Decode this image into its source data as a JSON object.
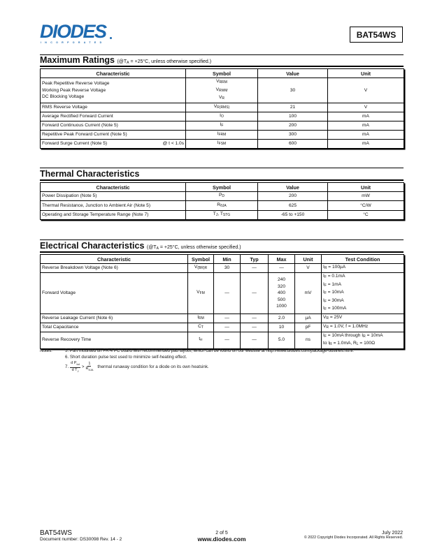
{
  "header": {
    "logo_text": "DIODES",
    "logo_subtext": "INCORPORATED",
    "brand_color": "#1e6ab0",
    "part_number": "BAT54WS"
  },
  "max_ratings": {
    "title": "Maximum Ratings",
    "condition": {
      "pre": "(@T",
      "sub": "A",
      "post": " = +25°C, unless otherwise specified.)"
    },
    "columns": [
      "Characteristic",
      "Symbol",
      "Value",
      "Unit"
    ],
    "rows": [
      [
        [
          "Peak Repetitive Reverse Voltage",
          "Working Peak Reverse Voltage",
          "DC Blocking Voltage"
        ],
        [
          {
            "v": "V",
            "s": "RRM"
          },
          {
            "v": "V",
            "s": "RWM"
          },
          {
            "v": "V",
            "s": "R"
          }
        ],
        "30",
        "V"
      ],
      [
        "RMS Reverse Voltage",
        [
          {
            "v": "V",
            "s": "R(RMS)"
          }
        ],
        "21",
        "V"
      ],
      [
        "Average Rectified Forward Current",
        [
          {
            "v": "I",
            "s": "O"
          }
        ],
        "100",
        "mA"
      ],
      [
        "Forward Continuous Current (Note 5)",
        [
          {
            "v": "I",
            "s": "F"
          }
        ],
        "200",
        "mA"
      ],
      [
        "Repetitive Peak Forward Current (Note 5)",
        [
          {
            "v": "I",
            "s": "FRM"
          }
        ],
        "300",
        "mA"
      ],
      [
        {
          "text": "Forward Surge Current (Note 5)",
          "right": "@ t < 1.0s"
        },
        [
          {
            "v": "I",
            "s": "FSM"
          }
        ],
        "600",
        "mA"
      ]
    ]
  },
  "thermal": {
    "title": "Thermal Characteristics",
    "columns": [
      "Characteristic",
      "Symbol",
      "Value",
      "Unit"
    ],
    "rows": [
      [
        "Power Dissipation (Note 5)",
        [
          {
            "v": "P",
            "s": "D"
          }
        ],
        "200",
        "mW"
      ],
      [
        "Thermal Resistance, Junction to Ambient Air (Note 5)",
        [
          {
            "v": "R",
            "s": "θJA"
          }
        ],
        "625",
        "°C/W"
      ],
      [
        "Operating and Storage Temperature Range (Note 7)",
        [
          {
            "v": "T",
            "s": "J",
            "t": ", T"
          },
          {
            "v": "",
            "s": "STG",
            "inline": true
          }
        ],
        "-65 to +150",
        "°C"
      ]
    ]
  },
  "electrical": {
    "title": "Electrical Characteristics",
    "condition": {
      "pre": "(@T",
      "sub": "A",
      "post": " = +25°C, unless otherwise specified.)"
    },
    "columns": [
      "Characteristic",
      "Symbol",
      "Min",
      "Typ",
      "Max",
      "Unit",
      "Test Condition"
    ],
    "rows": [
      [
        "Reverse Breakdown Voltage (Note 6)",
        [
          {
            "v": "V",
            "s": "(BR)R"
          }
        ],
        "30",
        "—",
        "—",
        "V",
        [
          {
            "v": "I",
            "s": "R",
            "t": " = 100µA"
          }
        ]
      ],
      [
        "Forward Voltage",
        [
          {
            "v": "V",
            "s": "FM"
          }
        ],
        "—",
        "—",
        [
          "240",
          "320",
          "400",
          "500",
          "1000"
        ],
        "mV",
        [
          {
            "v": "I",
            "s": "F",
            "t": " = 0.1mA"
          },
          {
            "v": "I",
            "s": "F",
            "t": " = 1mA"
          },
          {
            "v": "I",
            "s": "F",
            "t": " = 10mA"
          },
          {
            "v": "I",
            "s": "F",
            "t": " = 30mA"
          },
          {
            "v": "I",
            "s": "F",
            "t": " = 100mA"
          }
        ]
      ],
      [
        "Reverse Leakage Current (Note 6)",
        [
          {
            "v": "I",
            "s": "RM"
          }
        ],
        "—",
        "—",
        "2.0",
        "µA",
        [
          {
            "v": "V",
            "s": "R",
            "t": " = 25V"
          }
        ]
      ],
      [
        "Total Capacitance",
        [
          {
            "v": "C",
            "s": "T"
          }
        ],
        "—",
        "—",
        "10",
        "pF",
        [
          {
            "v": "V",
            "s": "R",
            "t": " = 1.0V, f = 1.0MHz"
          }
        ]
      ],
      [
        "Reverse Recovery Time",
        [
          {
            "v": "t",
            "s": "rr"
          }
        ],
        "—",
        "—",
        "5.0",
        "ns",
        [
          {
            "v": "I",
            "s": "F",
            "t": " = 10mA through I",
            "s2": "R",
            "t2": " = 10mA"
          },
          {
            "v": "to I",
            "s": "R",
            "t": " = 1.0mA, R",
            "s2": "L",
            "t2": " = 100Ω"
          }
        ]
      ]
    ]
  },
  "notes": {
    "label": "Notes:",
    "items": [
      "5.  Part mounted on FR-4 PC board with recommended pad layout, which can be found on our website at http://www.diodes.com/package-outlines.html.",
      "6.  Short duration pulse test used to minimize self-heating effect."
    ],
    "note7": {
      "num": "7.",
      "num_top": "d P",
      "num_top_sub": "bd",
      "num_bot": "d T",
      "num_bot_sub": "J",
      "gt": ">",
      "rhs_top": "1",
      "rhs_bot": "R",
      "rhs_bot_sub": "θJA",
      "text": "thermal runaway condition for a diode on its own heatsink."
    }
  },
  "footer": {
    "part": "BAT54WS",
    "doc_number": "Document number: DS30098 Rev. 14 - 2",
    "page": "2 of 5",
    "website": "www.diodes.com",
    "date": "July 2022",
    "copyright": "© 2022 Copyright Diodes Incorporated. All Rights Reserved."
  }
}
